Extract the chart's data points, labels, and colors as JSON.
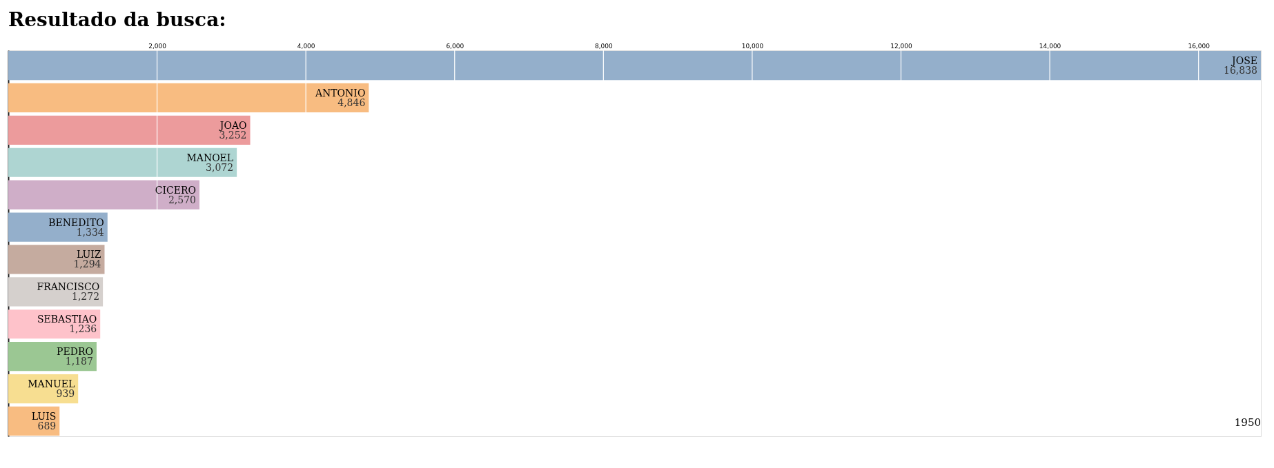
{
  "chart_data": {
    "type": "bar",
    "orientation": "horizontal",
    "title": "Resultado da busca:",
    "categories": [
      "JOSE",
      "ANTONIO",
      "JOAO",
      "MANOEL",
      "CICERO",
      "BENEDITO",
      "LUIZ",
      "FRANCISCO",
      "SEBASTIAO",
      "PEDRO",
      "MANUEL",
      "LUIS"
    ],
    "values": [
      16838,
      4846,
      3252,
      3072,
      2570,
      1334,
      1294,
      1272,
      1236,
      1187,
      939,
      689
    ],
    "value_labels": [
      "16,838",
      "4,846",
      "3,252",
      "3,072",
      "2,570",
      "1,334",
      "1,294",
      "1,272",
      "1,236",
      "1,187",
      "939",
      "689"
    ],
    "colors": [
      "#94afcb",
      "#f8bc81",
      "#ec9b9c",
      "#aed5d2",
      "#cfaec8",
      "#94afcb",
      "#c5ab9f",
      "#d5d0cd",
      "#fec2ca",
      "#9bc793",
      "#f7de91",
      "#f8bc81"
    ],
    "xlim": [
      0,
      16838
    ],
    "xticks": [
      {
        "value": 2000,
        "label": "2,000"
      },
      {
        "value": 4000,
        "label": "4,000"
      },
      {
        "value": 6000,
        "label": "6,000"
      },
      {
        "value": 8000,
        "label": "8,000"
      },
      {
        "value": 10000,
        "label": "10,000"
      },
      {
        "value": 12000,
        "label": "12,000"
      },
      {
        "value": 14000,
        "label": "14,000"
      },
      {
        "value": 16000,
        "label": "16,000"
      }
    ],
    "grid": "x",
    "tick_labels": "x",
    "annotations": [
      "1950"
    ]
  }
}
